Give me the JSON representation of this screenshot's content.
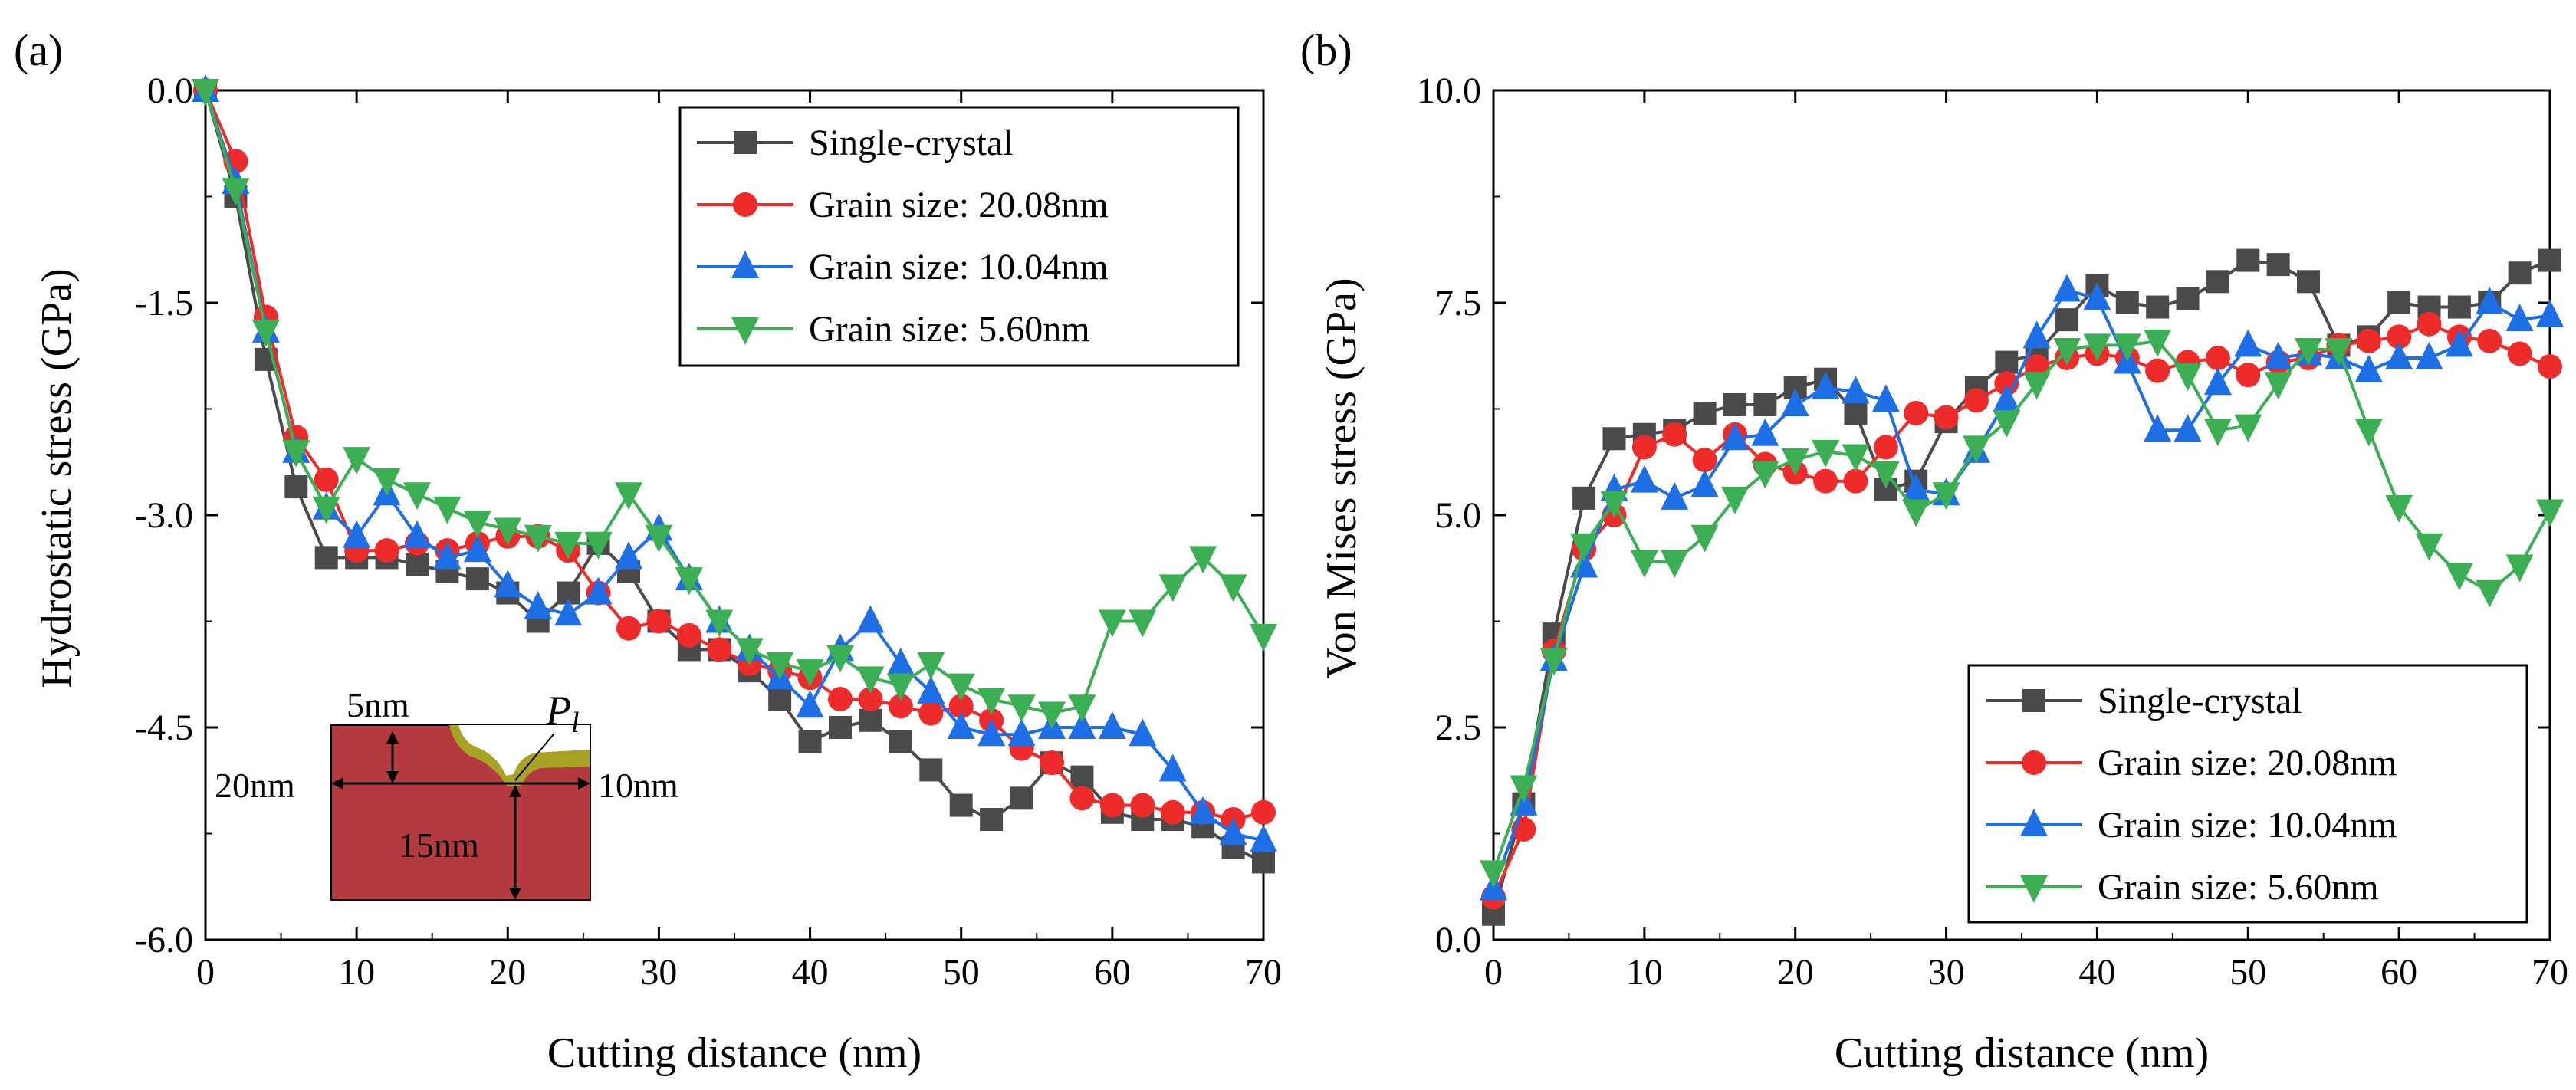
{
  "figure": {
    "panels": [
      "(a)",
      "(b)"
    ]
  },
  "inset": {
    "label_5nm": "5nm",
    "label_20nm": "20nm",
    "label_10nm": "10nm",
    "label_15nm": "15nm",
    "label_P": "P",
    "label_P_sub": "l"
  },
  "colors": {
    "single_crystal": "#4a4a4a",
    "grain_20": "#ee2b2b",
    "grain_10": "#1e6ee6",
    "grain_5": "#3caf55",
    "inset_matrix": "#b33b40",
    "inset_tool": "#a7a324"
  },
  "chart_data": [
    {
      "type": "line",
      "panel": "(a)",
      "xlabel": "Cutting distance (nm)",
      "ylabel": "Hydrostatic stress (GPa)",
      "xlim": [
        0,
        70
      ],
      "ylim": [
        -6.0,
        0.0
      ],
      "xticks": [
        0,
        10,
        20,
        30,
        40,
        50,
        60,
        70
      ],
      "yticks": [
        0.0,
        -1.5,
        -3.0,
        -4.5,
        -6.0
      ],
      "ytick_labels": [
        "0.0",
        "-1.5",
        "-3.0",
        "-4.5",
        "-6.0"
      ],
      "legend_position": "top-right",
      "x": [
        0,
        2,
        4,
        6,
        8,
        10,
        12,
        14,
        16,
        18,
        20,
        22,
        24,
        26,
        28,
        30,
        32,
        34,
        36,
        38,
        40,
        42,
        44,
        46,
        48,
        50,
        52,
        54,
        56,
        58,
        60,
        62,
        64,
        66,
        68,
        70
      ],
      "series": [
        {
          "name": "Single-crystal",
          "marker": "square",
          "color": "#4a4a4a",
          "values": [
            0,
            -0.75,
            -1.9,
            -2.8,
            -3.3,
            -3.3,
            -3.3,
            -3.35,
            -3.4,
            -3.45,
            -3.55,
            -3.75,
            -3.55,
            -3.2,
            -3.4,
            -3.75,
            -3.95,
            -3.95,
            -4.1,
            -4.3,
            -4.6,
            -4.5,
            -4.45,
            -4.6,
            -4.8,
            -5.05,
            -5.15,
            -5.0,
            -4.75,
            -4.85,
            -5.1,
            -5.15,
            -5.15,
            -5.2,
            -5.35,
            -5.45
          ]
        },
        {
          "name": "Grain size: 20.08nm",
          "marker": "circle",
          "color": "#ee2b2b",
          "values": [
            0,
            -0.5,
            -1.6,
            -2.45,
            -2.75,
            -3.25,
            -3.25,
            -3.2,
            -3.25,
            -3.2,
            -3.15,
            -3.15,
            -3.25,
            -3.55,
            -3.8,
            -3.75,
            -3.85,
            -3.95,
            -4.05,
            -4.1,
            -4.15,
            -4.3,
            -4.3,
            -4.35,
            -4.4,
            -4.35,
            -4.45,
            -4.65,
            -4.75,
            -5.0,
            -5.05,
            -5.05,
            -5.1,
            -5.1,
            -5.15,
            -5.1
          ]
        },
        {
          "name": "Grain size: 10.04nm",
          "marker": "triangle-up",
          "color": "#1e6ee6",
          "values": [
            0,
            -0.65,
            -1.7,
            -2.55,
            -2.95,
            -3.15,
            -2.85,
            -3.15,
            -3.3,
            -3.25,
            -3.5,
            -3.65,
            -3.7,
            -3.55,
            -3.3,
            -3.1,
            -3.45,
            -3.75,
            -3.95,
            -4.15,
            -4.35,
            -3.95,
            -3.75,
            -4.05,
            -4.25,
            -4.5,
            -4.55,
            -4.55,
            -4.5,
            -4.5,
            -4.5,
            -4.55,
            -4.8,
            -5.1,
            -5.25,
            -5.3
          ]
        },
        {
          "name": "Grain size: 5.60nm",
          "marker": "triangle-down",
          "color": "#3caf55",
          "values": [
            0,
            -0.7,
            -1.7,
            -2.55,
            -2.95,
            -2.6,
            -2.75,
            -2.85,
            -2.95,
            -3.05,
            -3.1,
            -3.15,
            -3.2,
            -3.2,
            -2.85,
            -3.15,
            -3.45,
            -3.75,
            -3.95,
            -4.05,
            -4.1,
            -4.0,
            -4.15,
            -4.2,
            -4.05,
            -4.2,
            -4.3,
            -4.35,
            -4.4,
            -4.35,
            -3.75,
            -3.75,
            -3.5,
            -3.3,
            -3.5,
            -3.85
          ]
        }
      ]
    },
    {
      "type": "line",
      "panel": "(b)",
      "xlabel": "Cutting distance (nm)",
      "ylabel": "Von Mises stress (GPa)",
      "xlim": [
        0,
        70
      ],
      "ylim": [
        0.0,
        10.0
      ],
      "xticks": [
        0,
        10,
        20,
        30,
        40,
        50,
        60,
        70
      ],
      "yticks": [
        0.0,
        2.5,
        5.0,
        7.5,
        10.0
      ],
      "ytick_labels": [
        "0.0",
        "2.5",
        "5.0",
        "7.5",
        "10.0"
      ],
      "legend_position": "bottom-right",
      "x": [
        0,
        2,
        4,
        6,
        8,
        10,
        12,
        14,
        16,
        18,
        20,
        22,
        24,
        26,
        28,
        30,
        32,
        34,
        36,
        38,
        40,
        42,
        44,
        46,
        48,
        50,
        52,
        54,
        56,
        58,
        60,
        62,
        64,
        66,
        68,
        70
      ],
      "series": [
        {
          "name": "Single-crystal",
          "marker": "square",
          "color": "#4a4a4a",
          "values": [
            0.3,
            1.6,
            3.6,
            5.2,
            5.9,
            5.95,
            6.0,
            6.2,
            6.3,
            6.3,
            6.5,
            6.6,
            6.2,
            5.3,
            5.4,
            6.1,
            6.5,
            6.8,
            6.9,
            7.3,
            7.7,
            7.5,
            7.45,
            7.55,
            7.75,
            8.0,
            7.95,
            7.75,
            7.0,
            7.1,
            7.5,
            7.45,
            7.45,
            7.5,
            7.85,
            8.0
          ]
        },
        {
          "name": "Grain size: 20.08nm",
          "marker": "circle",
          "color": "#ee2b2b",
          "values": [
            0.5,
            1.3,
            3.4,
            4.6,
            5.0,
            5.8,
            5.95,
            5.65,
            5.95,
            5.6,
            5.5,
            5.4,
            5.4,
            5.8,
            6.2,
            6.15,
            6.35,
            6.55,
            6.75,
            6.85,
            6.9,
            6.85,
            6.7,
            6.8,
            6.85,
            6.65,
            6.8,
            6.85,
            7.0,
            7.05,
            7.1,
            7.25,
            7.1,
            7.05,
            6.9,
            6.75
          ]
        },
        {
          "name": "Grain size: 10.04nm",
          "marker": "triangle-up",
          "color": "#1e6ee6",
          "values": [
            0.6,
            1.6,
            3.3,
            4.4,
            5.3,
            5.4,
            5.2,
            5.35,
            5.9,
            5.95,
            6.3,
            6.5,
            6.45,
            6.35,
            5.3,
            5.25,
            5.75,
            6.35,
            7.1,
            7.65,
            7.55,
            6.8,
            6.0,
            6.0,
            6.55,
            7.0,
            6.85,
            6.9,
            6.85,
            6.7,
            6.85,
            6.85,
            7.0,
            7.5,
            7.3,
            7.35
          ]
        },
        {
          "name": "Grain size: 5.60nm",
          "marker": "triangle-down",
          "color": "#3caf55",
          "values": [
            0.8,
            1.8,
            3.3,
            4.65,
            5.15,
            4.45,
            4.45,
            4.75,
            5.2,
            5.5,
            5.65,
            5.75,
            5.7,
            5.5,
            5.05,
            5.25,
            5.8,
            6.1,
            6.55,
            6.95,
            7.0,
            7.0,
            7.05,
            6.65,
            6.0,
            6.05,
            6.55,
            6.95,
            6.95,
            6.0,
            5.1,
            4.65,
            4.3,
            4.1,
            4.4,
            5.05
          ]
        }
      ]
    }
  ]
}
